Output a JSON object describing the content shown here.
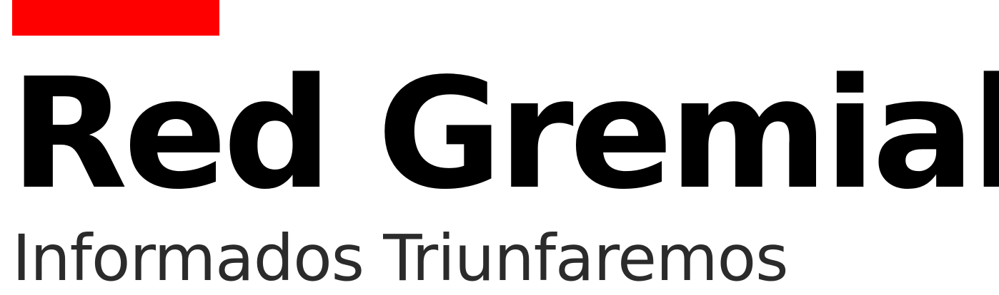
{
  "logo": {
    "title": "Red Gremial",
    "tagline": "Informados Triunfaremos"
  },
  "colors": {
    "accent": "#ff0000",
    "title": "#000000",
    "tagline": "#2b2b2b"
  }
}
